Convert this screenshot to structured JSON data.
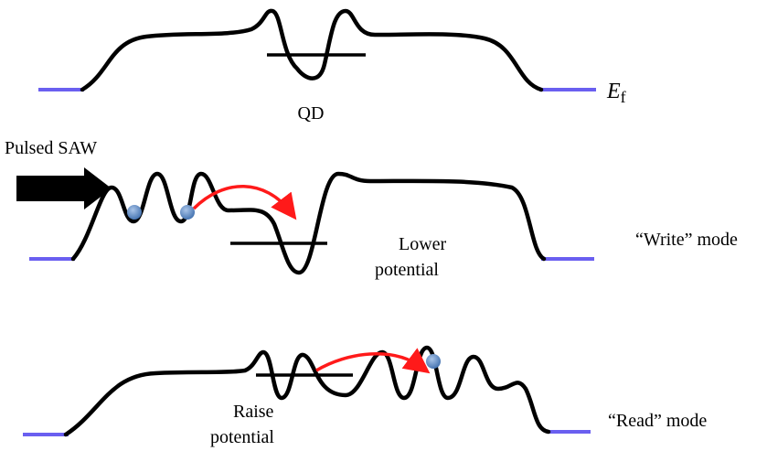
{
  "qd_label": "QD",
  "fermi_level": {
    "symbol": "E",
    "subscript": "f"
  },
  "saw_label": "Pulsed SAW",
  "lower_label": {
    "lines": [
      "Lower",
      "potential"
    ]
  },
  "write_mode": "“Write” mode",
  "raise_label": {
    "lines": [
      "Raise",
      "potential"
    ]
  },
  "read_mode": "“Read” mode"
}
